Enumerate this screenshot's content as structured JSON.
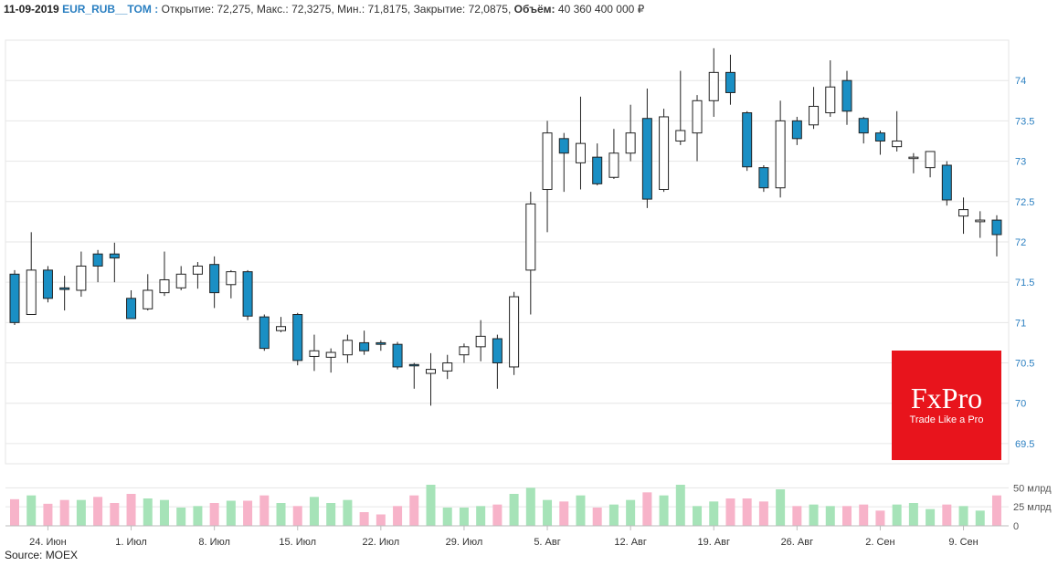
{
  "header": {
    "date": "11-09-2019",
    "ticker": "EUR_RUB__TOM :",
    "open_label": "Открытие:",
    "open": "72,275,",
    "high_label": "Макс.:",
    "high": "72,3275,",
    "low_label": "Мин.:",
    "low": "71,8175,",
    "close_label": "Закрытие:",
    "close": "72,0875,",
    "volume_label": "Объём:",
    "volume": "40 360 400 000 ₽"
  },
  "source": "Source: MOEX",
  "logo": {
    "brand": "FxPro",
    "tagline": "Trade Like a Pro"
  },
  "colors": {
    "up_fill": "#ffffff",
    "down_fill": "#1a8fc4",
    "wick": "#222222",
    "vol_up": "#a6e3b8",
    "vol_down": "#f7b3c9",
    "grid": "#e6e6e6",
    "price_axis_text": "#2a7fc1",
    "vol_axis_text": "#555555",
    "logo_bg": "#e8141c"
  },
  "chart_data": {
    "type": "candlestick",
    "ylim": [
      69.25,
      74.5
    ],
    "yticks": [
      "69.5",
      "70",
      "70.5",
      "71",
      "71.5",
      "72",
      "72.5",
      "73",
      "73.5",
      "74"
    ],
    "volume_ylim": [
      0,
      72
    ],
    "volume_ticks": [
      "0",
      "25 млрд",
      "50 млрд"
    ],
    "x_labels": [
      {
        "label": "24. Июн",
        "index": 2
      },
      {
        "label": "1. Июл",
        "index": 7
      },
      {
        "label": "8. Июл",
        "index": 12
      },
      {
        "label": "15. Июл",
        "index": 17
      },
      {
        "label": "22. Июл",
        "index": 22
      },
      {
        "label": "29. Июл",
        "index": 27
      },
      {
        "label": "5. Авг",
        "index": 32
      },
      {
        "label": "12. Авг",
        "index": 37
      },
      {
        "label": "19. Авг",
        "index": 42
      },
      {
        "label": "26. Авг",
        "index": 47
      },
      {
        "label": "2. Сен",
        "index": 52
      },
      {
        "label": "9. Сен",
        "index": 57
      }
    ],
    "candles": [
      {
        "o": 71.6,
        "h": 71.65,
        "l": 70.97,
        "c": 71.0,
        "v": 35
      },
      {
        "o": 71.1,
        "h": 72.12,
        "l": 71.1,
        "c": 71.65,
        "v": 40
      },
      {
        "o": 71.65,
        "h": 71.7,
        "l": 71.25,
        "c": 71.3,
        "v": 29
      },
      {
        "o": 71.43,
        "h": 71.58,
        "l": 71.15,
        "c": 71.41,
        "v": 34
      },
      {
        "o": 71.4,
        "h": 71.88,
        "l": 71.32,
        "c": 71.7,
        "v": 34
      },
      {
        "o": 71.85,
        "h": 71.9,
        "l": 71.5,
        "c": 71.7,
        "v": 38
      },
      {
        "o": 71.85,
        "h": 71.99,
        "l": 71.5,
        "c": 71.8,
        "v": 30
      },
      {
        "o": 71.3,
        "h": 71.4,
        "l": 71.05,
        "c": 71.05,
        "v": 42
      },
      {
        "o": 71.17,
        "h": 71.6,
        "l": 71.15,
        "c": 71.4,
        "v": 36
      },
      {
        "o": 71.37,
        "h": 71.88,
        "l": 71.33,
        "c": 71.53,
        "v": 34
      },
      {
        "o": 71.43,
        "h": 71.7,
        "l": 71.4,
        "c": 71.6,
        "v": 24
      },
      {
        "o": 71.6,
        "h": 71.75,
        "l": 71.42,
        "c": 71.7,
        "v": 26
      },
      {
        "o": 71.72,
        "h": 71.82,
        "l": 71.18,
        "c": 71.37,
        "v": 30
      },
      {
        "o": 71.47,
        "h": 71.65,
        "l": 71.3,
        "c": 71.63,
        "v": 33
      },
      {
        "o": 71.63,
        "h": 71.65,
        "l": 71.03,
        "c": 71.08,
        "v": 33
      },
      {
        "o": 71.07,
        "h": 71.1,
        "l": 70.65,
        "c": 70.68,
        "v": 40
      },
      {
        "o": 70.9,
        "h": 71.07,
        "l": 70.88,
        "c": 70.95,
        "v": 30
      },
      {
        "o": 71.1,
        "h": 71.12,
        "l": 70.47,
        "c": 70.53,
        "v": 26
      },
      {
        "o": 70.58,
        "h": 70.85,
        "l": 70.4,
        "c": 70.65,
        "v": 38
      },
      {
        "o": 70.57,
        "h": 70.68,
        "l": 70.38,
        "c": 70.63,
        "v": 30
      },
      {
        "o": 70.6,
        "h": 70.85,
        "l": 70.5,
        "c": 70.78,
        "v": 34
      },
      {
        "o": 70.75,
        "h": 70.9,
        "l": 70.6,
        "c": 70.65,
        "v": 18
      },
      {
        "o": 70.75,
        "h": 70.78,
        "l": 70.65,
        "c": 70.73,
        "v": 15
      },
      {
        "o": 70.73,
        "h": 70.76,
        "l": 70.42,
        "c": 70.45,
        "v": 26
      },
      {
        "o": 70.48,
        "h": 70.5,
        "l": 70.18,
        "c": 70.47,
        "v": 40
      },
      {
        "o": 70.37,
        "h": 70.62,
        "l": 69.97,
        "c": 70.42,
        "v": 54
      },
      {
        "o": 70.4,
        "h": 70.6,
        "l": 70.3,
        "c": 70.5,
        "v": 24
      },
      {
        "o": 70.6,
        "h": 70.74,
        "l": 70.5,
        "c": 70.7,
        "v": 24
      },
      {
        "o": 70.7,
        "h": 71.03,
        "l": 70.52,
        "c": 70.83,
        "v": 26
      },
      {
        "o": 70.8,
        "h": 70.85,
        "l": 70.18,
        "c": 70.5,
        "v": 28
      },
      {
        "o": 70.45,
        "h": 71.38,
        "l": 70.35,
        "c": 71.32,
        "v": 42
      },
      {
        "o": 71.65,
        "h": 72.62,
        "l": 71.1,
        "c": 72.47,
        "v": 50
      },
      {
        "o": 72.65,
        "h": 73.5,
        "l": 72.12,
        "c": 73.35,
        "v": 34
      },
      {
        "o": 73.28,
        "h": 73.35,
        "l": 72.62,
        "c": 73.1,
        "v": 32
      },
      {
        "o": 72.98,
        "h": 73.8,
        "l": 72.65,
        "c": 73.22,
        "v": 40
      },
      {
        "o": 73.05,
        "h": 73.22,
        "l": 72.7,
        "c": 72.72,
        "v": 24
      },
      {
        "o": 72.8,
        "h": 73.4,
        "l": 72.78,
        "c": 73.1,
        "v": 28
      },
      {
        "o": 73.1,
        "h": 73.7,
        "l": 73.0,
        "c": 73.35,
        "v": 34
      },
      {
        "o": 73.53,
        "h": 73.9,
        "l": 72.42,
        "c": 72.53,
        "v": 44
      },
      {
        "o": 72.65,
        "h": 73.65,
        "l": 72.62,
        "c": 73.55,
        "v": 40
      },
      {
        "o": 73.25,
        "h": 74.12,
        "l": 73.2,
        "c": 73.38,
        "v": 54
      },
      {
        "o": 73.35,
        "h": 73.82,
        "l": 73.0,
        "c": 73.75,
        "v": 26
      },
      {
        "o": 73.75,
        "h": 74.4,
        "l": 73.55,
        "c": 74.1,
        "v": 32
      },
      {
        "o": 74.1,
        "h": 74.32,
        "l": 73.7,
        "c": 73.85,
        "v": 36
      },
      {
        "o": 73.6,
        "h": 73.62,
        "l": 72.88,
        "c": 72.93,
        "v": 36
      },
      {
        "o": 72.92,
        "h": 72.95,
        "l": 72.62,
        "c": 72.67,
        "v": 32
      },
      {
        "o": 72.67,
        "h": 73.75,
        "l": 72.55,
        "c": 73.5,
        "v": 48
      },
      {
        "o": 73.5,
        "h": 73.55,
        "l": 73.2,
        "c": 73.28,
        "v": 26
      },
      {
        "o": 73.45,
        "h": 73.92,
        "l": 73.4,
        "c": 73.68,
        "v": 28
      },
      {
        "o": 73.6,
        "h": 74.25,
        "l": 73.55,
        "c": 73.92,
        "v": 26
      },
      {
        "o": 74.0,
        "h": 74.12,
        "l": 73.45,
        "c": 73.62,
        "v": 26
      },
      {
        "o": 73.53,
        "h": 73.55,
        "l": 73.22,
        "c": 73.35,
        "v": 28
      },
      {
        "o": 73.35,
        "h": 73.38,
        "l": 73.08,
        "c": 73.25,
        "v": 20
      },
      {
        "o": 73.18,
        "h": 73.62,
        "l": 73.12,
        "c": 73.25,
        "v": 28
      },
      {
        "o": 73.05,
        "h": 73.1,
        "l": 72.85,
        "c": 73.05,
        "v": 30
      },
      {
        "o": 72.92,
        "h": 73.12,
        "l": 72.8,
        "c": 73.12,
        "v": 22
      },
      {
        "o": 72.95,
        "h": 73.0,
        "l": 72.45,
        "c": 72.52,
        "v": 28
      },
      {
        "o": 72.32,
        "h": 72.55,
        "l": 72.1,
        "c": 72.4,
        "v": 26
      },
      {
        "o": 72.25,
        "h": 72.38,
        "l": 72.05,
        "c": 72.27,
        "v": 20
      },
      {
        "o": 72.27,
        "h": 72.33,
        "l": 71.82,
        "c": 72.09,
        "v": 40
      }
    ]
  }
}
